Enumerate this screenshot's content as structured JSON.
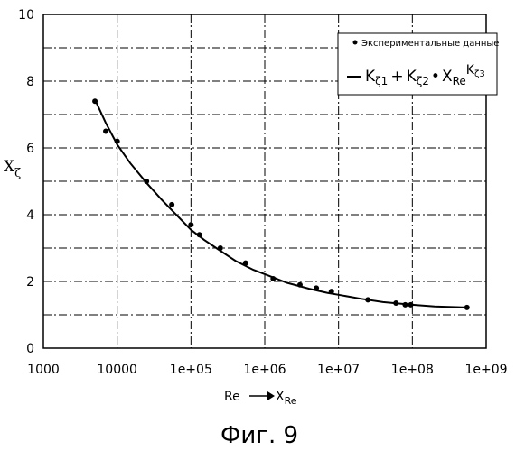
{
  "figure_caption": "Фиг. 9",
  "chart_data": {
    "type": "scatter",
    "xscale": "log",
    "xlabel": "Re → X_Re",
    "ylabel": "X_ζ",
    "xlim": [
      1000,
      1000000000
    ],
    "ylim": [
      0,
      10
    ],
    "grid": true,
    "legend_position": "top-right",
    "x_tick_labels": [
      "1000",
      "10000",
      "1e+05",
      "1e+06",
      "1e+07",
      "1e+08",
      "1e+09"
    ],
    "y_tick_labels": [
      "0",
      "2",
      "4",
      "6",
      "8",
      "10"
    ],
    "series": [
      {
        "name": "Экспериментальные данные",
        "kind": "points",
        "x": [
          5000,
          7000,
          10000,
          25000,
          55000,
          100000,
          130000,
          250000,
          550000,
          1300000,
          3000000,
          5000000,
          8000000,
          25000000,
          60000000,
          80000000,
          95000000,
          550000000
        ],
        "y": [
          7.4,
          6.5,
          6.2,
          5.0,
          4.3,
          3.7,
          3.4,
          3.0,
          2.55,
          2.08,
          1.9,
          1.8,
          1.7,
          1.45,
          1.35,
          1.3,
          1.3,
          1.22
        ]
      },
      {
        "name": "K_ζ1 + K_ζ2 • X_Re^K_ζ3",
        "kind": "line",
        "x": [
          5000,
          7000,
          10000,
          15000,
          25000,
          40000,
          60000,
          100000,
          150000,
          250000,
          400000,
          700000,
          1000000,
          2000000,
          4000000,
          7000000,
          10000000,
          20000000,
          40000000,
          100000000,
          200000000,
          550000000
        ],
        "y": [
          7.45,
          6.75,
          6.1,
          5.55,
          4.95,
          4.45,
          4.05,
          3.55,
          3.25,
          2.92,
          2.62,
          2.35,
          2.22,
          1.96,
          1.78,
          1.66,
          1.6,
          1.48,
          1.38,
          1.3,
          1.25,
          1.22
        ]
      }
    ],
    "legend": {
      "points_label": "Экспериментальные данные",
      "formula": {
        "k1_base": "K",
        "k1_sub": "ζ1",
        "plus": "+",
        "k2_base": "K",
        "k2_sub": "ζ2",
        "dot": "•",
        "x_base": "X",
        "x_sub": "Re",
        "exp_base": "K",
        "exp_sub": "ζ3"
      }
    },
    "axis_labels": {
      "x_text_1": "Re",
      "x_base": "X",
      "x_sub": "Re",
      "y_base": "X",
      "y_sub": "ζ"
    }
  }
}
